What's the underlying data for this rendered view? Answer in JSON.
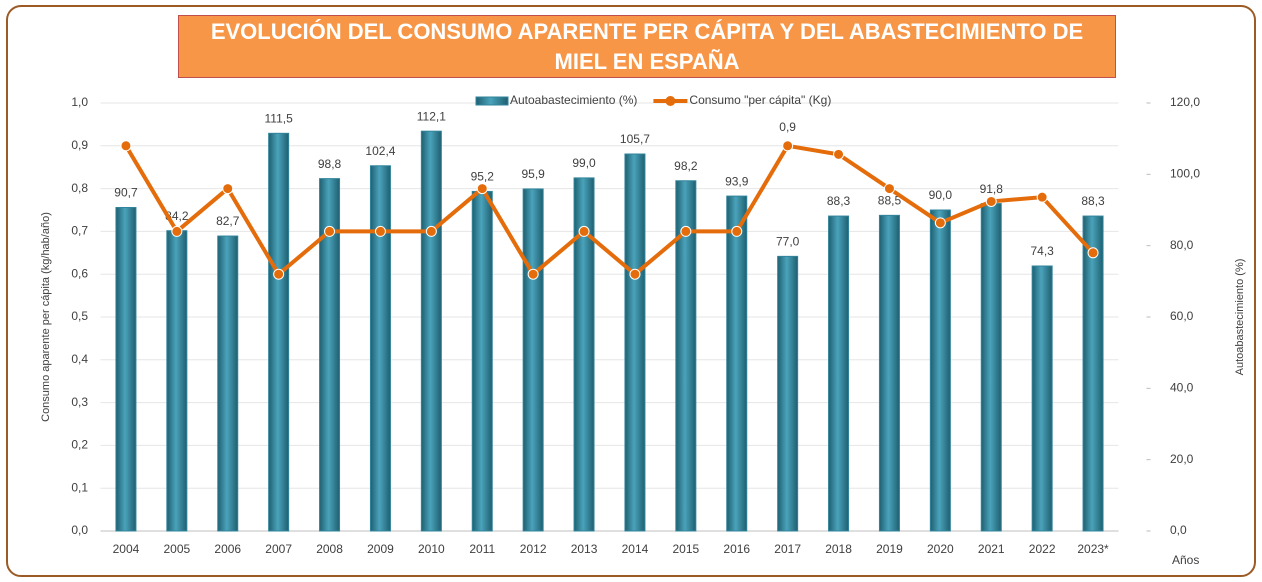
{
  "chart_data": {
    "type": "bar",
    "title": "EVOLUCIÓN DEL CONSUMO APARENTE PER CÁPITA Y DEL ABASTECIMIENTO DE MIEL EN ESPAÑA",
    "x_label": "Años",
    "y_label": "Consumo aparente per cápita (kg/hab/año)",
    "y2_label": "Autoabastecimiento (%)",
    "categories": [
      "2004",
      "2005",
      "2006",
      "2007",
      "2008",
      "2009",
      "2010",
      "2011",
      "2012",
      "2013",
      "2014",
      "2015",
      "2016",
      "2017",
      "2018",
      "2019",
      "2020",
      "2021",
      "2022",
      "2023*"
    ],
    "series": [
      {
        "name": "Autoabastecimiento (%)",
        "type": "bar",
        "axis": "y2",
        "color": "#31849b",
        "values": [
          90.7,
          84.2,
          82.7,
          111.5,
          98.8,
          102.4,
          112.1,
          95.2,
          95.9,
          99.0,
          105.7,
          98.2,
          93.9,
          77.0,
          88.3,
          88.5,
          90.0,
          91.8,
          74.3,
          88.3
        ],
        "value_labels": [
          "90,7",
          "84,2",
          "82,7",
          "111,5",
          "98,8",
          "102,4",
          "112,1",
          "95,2",
          "95,9",
          "99,0",
          "105,7",
          "98,2",
          "93,9",
          "77,0",
          "88,3",
          "88,5",
          "90,0",
          "91,8",
          "74,3",
          "88,3"
        ]
      },
      {
        "name": "Consumo \"per cápita\" (Kg)",
        "type": "line",
        "axis": "y",
        "color": "#e46c0a",
        "values": [
          0.9,
          0.7,
          0.8,
          0.6,
          0.7,
          0.7,
          0.7,
          0.8,
          0.6,
          0.7,
          0.6,
          0.7,
          0.7,
          0.9,
          0.88,
          0.8,
          0.72,
          0.77,
          0.78,
          0.65
        ],
        "value_labels": [
          null,
          null,
          null,
          null,
          null,
          null,
          null,
          null,
          null,
          null,
          null,
          null,
          null,
          "0,9",
          null,
          null,
          null,
          null,
          null,
          null
        ]
      }
    ],
    "ylim": [
      0,
      1.0
    ],
    "yticks": [
      {
        "value": 0,
        "label": "0,0"
      },
      {
        "value": 0.1,
        "label": "0,1"
      },
      {
        "value": 0.2,
        "label": "0,2"
      },
      {
        "value": 0.3,
        "label": "0,3"
      },
      {
        "value": 0.4,
        "label": "0,4"
      },
      {
        "value": 0.5,
        "label": "0,5"
      },
      {
        "value": 0.6,
        "label": "0,6"
      },
      {
        "value": 0.7,
        "label": "0,7"
      },
      {
        "value": 0.8,
        "label": "0,8"
      },
      {
        "value": 0.9,
        "label": "0,9"
      },
      {
        "value": 1.0,
        "label": "1,0"
      }
    ],
    "y2lim": [
      0,
      120
    ],
    "y2ticks": [
      {
        "value": 0,
        "label": "0,0"
      },
      {
        "value": 20,
        "label": "20,0"
      },
      {
        "value": 40,
        "label": "40,0"
      },
      {
        "value": 60,
        "label": "60,0"
      },
      {
        "value": 80,
        "label": "80,0"
      },
      {
        "value": 100,
        "label": "100,0"
      },
      {
        "value": 120,
        "label": "120,0"
      }
    ],
    "grid": true,
    "legend": "top"
  }
}
